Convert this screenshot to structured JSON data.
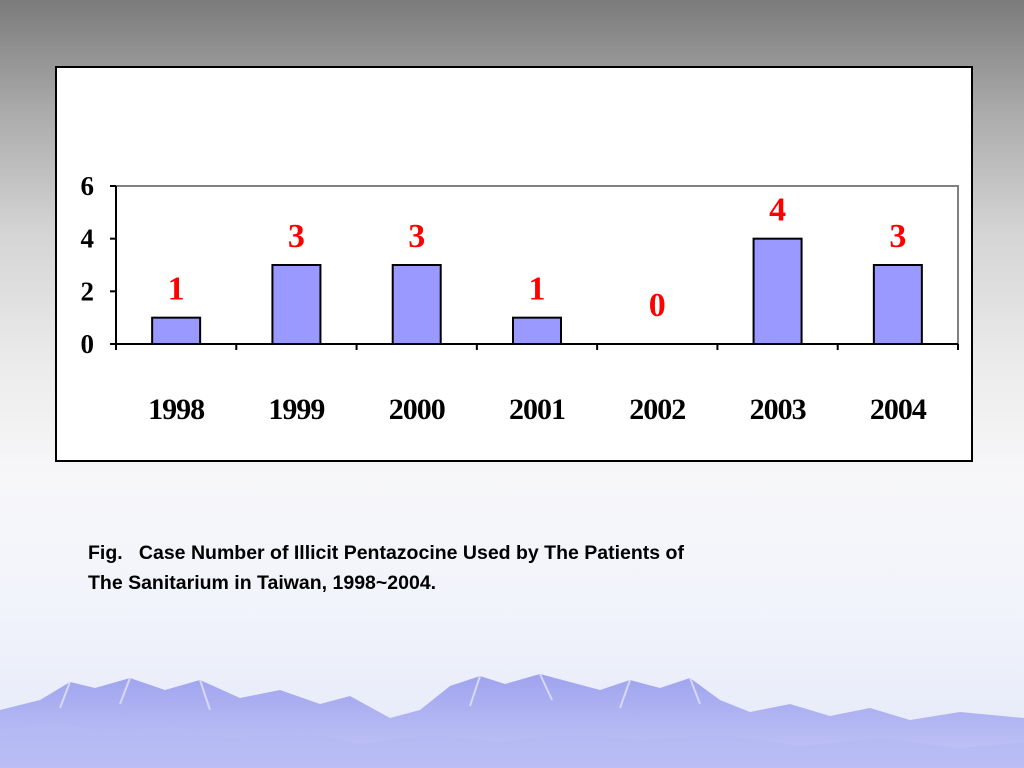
{
  "caption": {
    "line1": "Fig.   Case Number of Illicit Pentazocine Used by The Patients of",
    "line2": "The Sanitarium in Taiwan, 1998~2004."
  },
  "colors": {
    "bar_fill": "#9999ff",
    "bar_stroke": "#000000",
    "data_label": "#ff0000",
    "plot_border": "#808080"
  },
  "chart_data": {
    "type": "bar",
    "categories": [
      "1998",
      "1999",
      "2000",
      "2001",
      "2002",
      "2003",
      "2004"
    ],
    "values": [
      1,
      3,
      3,
      1,
      0,
      4,
      3
    ],
    "data_labels": [
      "1",
      "3",
      "3",
      "1",
      "0",
      "4",
      "3"
    ],
    "yticks": [
      "0",
      "2",
      "4",
      "6"
    ],
    "ylim": [
      0,
      6
    ],
    "grid": false,
    "legend": false
  }
}
